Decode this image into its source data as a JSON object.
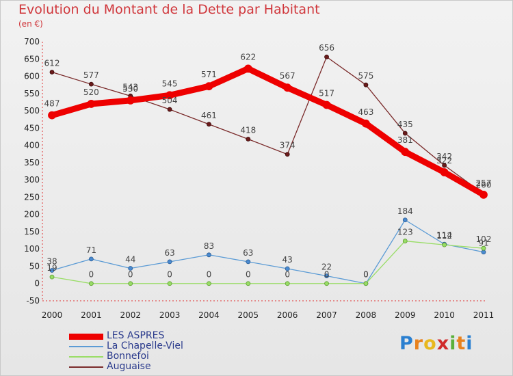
{
  "header": {
    "title": "Evolution du Montant de la Dette par Habitant",
    "subtitle": "(en €)"
  },
  "colors": {
    "title": "#d0363b",
    "les_aspres": "#ee0000",
    "la_chapelle_viel": "#5b9bd5",
    "bonnefoi": "#99dd66",
    "auguaise": "#7a2a2a"
  },
  "logo": {
    "text": "Proxiti"
  },
  "chart_data": {
    "type": "line",
    "title": "Evolution du Montant de la Dette par Habitant",
    "subtitle": "(en €)",
    "x": [
      "2000",
      "2001",
      "2002",
      "2003",
      "2004",
      "2005",
      "2006",
      "2007",
      "2008",
      "2009",
      "2010",
      "2011"
    ],
    "ylim": [
      -50,
      700
    ],
    "yticks": [
      -50,
      0,
      50,
      100,
      150,
      200,
      250,
      300,
      350,
      400,
      450,
      500,
      550,
      600,
      650,
      700
    ],
    "grid": false,
    "legend": "bottom-left",
    "series": [
      {
        "name": "LES ASPRES",
        "color": "#ee0000",
        "values": [
          487,
          520,
          530,
          545,
          571,
          622,
          567,
          517,
          463,
          381,
          322,
          257
        ]
      },
      {
        "name": "La Chapelle-Viel",
        "color": "#5b9bd5",
        "values": [
          38,
          71,
          44,
          63,
          83,
          63,
          43,
          22,
          0,
          184,
          114,
          91
        ]
      },
      {
        "name": "Bonnefoi",
        "color": "#99dd66",
        "values": [
          19,
          0,
          0,
          0,
          0,
          0,
          0,
          0,
          0,
          123,
          112,
          102
        ]
      },
      {
        "name": "Auguaise",
        "color": "#7a2a2a",
        "values": [
          612,
          577,
          543,
          504,
          461,
          418,
          374,
          656,
          575,
          435,
          342,
          260
        ]
      }
    ]
  }
}
